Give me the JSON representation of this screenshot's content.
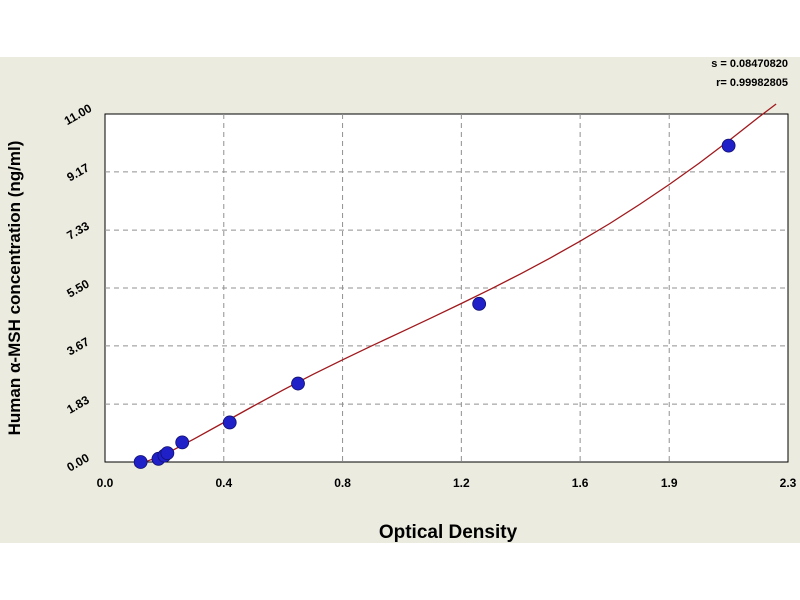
{
  "chart_data": {
    "type": "scatter",
    "xlabel": "Optical Density",
    "ylabel": "Human α-MSH concentration (ng/ml)",
    "xlim": [
      0.0,
      2.3
    ],
    "ylim": [
      0.0,
      11.0
    ],
    "x_ticks": [
      0.0,
      0.4,
      0.8,
      1.2,
      1.6,
      1.9,
      2.3
    ],
    "x_tick_labels": [
      "0.0",
      "0.4",
      "0.8",
      "1.2",
      "1.6",
      "1.9",
      "2.3"
    ],
    "y_ticks": [
      0.0,
      1.83,
      3.67,
      5.5,
      7.33,
      9.17,
      11.0
    ],
    "y_tick_labels": [
      "0.00",
      "1.83",
      "3.67",
      "5.50",
      "7.33",
      "9.17",
      "11.00"
    ],
    "grid": true,
    "series": [
      {
        "points": [
          {
            "x": 0.12,
            "y": 0.0
          },
          {
            "x": 0.18,
            "y": 0.1
          },
          {
            "x": 0.2,
            "y": 0.2
          },
          {
            "x": 0.21,
            "y": 0.28
          },
          {
            "x": 0.26,
            "y": 0.62
          },
          {
            "x": 0.42,
            "y": 1.25
          },
          {
            "x": 0.65,
            "y": 2.48
          },
          {
            "x": 1.26,
            "y": 5.0
          },
          {
            "x": 2.1,
            "y": 10.0
          }
        ],
        "color": "#2020c8"
      }
    ],
    "fit_curve": {
      "x": [
        0.1,
        0.2,
        0.3,
        0.4,
        0.5,
        0.6,
        0.7,
        0.8,
        0.9,
        1.0,
        1.1,
        1.2,
        1.3,
        1.4,
        1.5,
        1.6,
        1.7,
        1.8,
        1.9,
        2.0,
        2.1,
        2.2,
        2.26
      ],
      "y": [
        -0.12,
        0.23,
        0.73,
        1.25,
        1.77,
        2.28,
        2.77,
        3.23,
        3.68,
        4.12,
        4.56,
        5.01,
        5.47,
        5.95,
        6.45,
        6.98,
        7.54,
        8.14,
        8.77,
        9.44,
        10.15,
        10.89,
        11.35
      ],
      "color": "#a0181c"
    },
    "stats": {
      "s": "s = 0.08470820",
      "r": "r= 0.99982805"
    }
  }
}
